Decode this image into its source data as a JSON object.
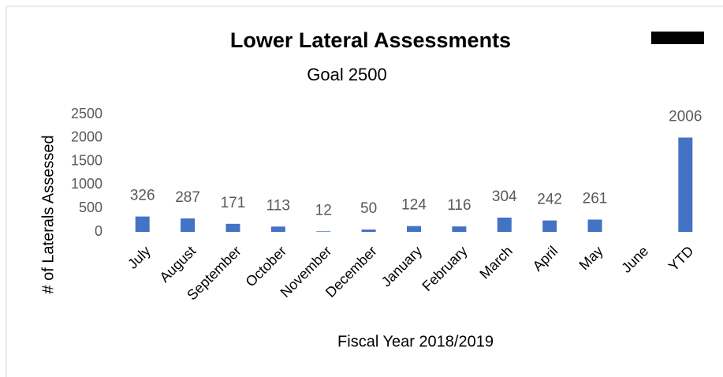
{
  "chart_data": {
    "type": "bar",
    "title": "Lower Lateral Assessments",
    "subtitle": "Goal 2500",
    "x_label": "Fiscal Year 2018/2019",
    "y_label": "# of Laterals Assessed",
    "categories": [
      "July",
      "August",
      "September",
      "October",
      "November",
      "December",
      "January",
      "February",
      "March",
      "April",
      "May",
      "June",
      "YTD"
    ],
    "values": [
      326,
      287,
      171,
      113,
      12,
      50,
      124,
      116,
      304,
      242,
      261,
      null,
      2006
    ],
    "color": "#4472c4",
    "ylim": [
      0,
      2500
    ],
    "yticks": [
      0,
      500,
      1000,
      1500,
      2000,
      2500
    ],
    "grid": false
  }
}
